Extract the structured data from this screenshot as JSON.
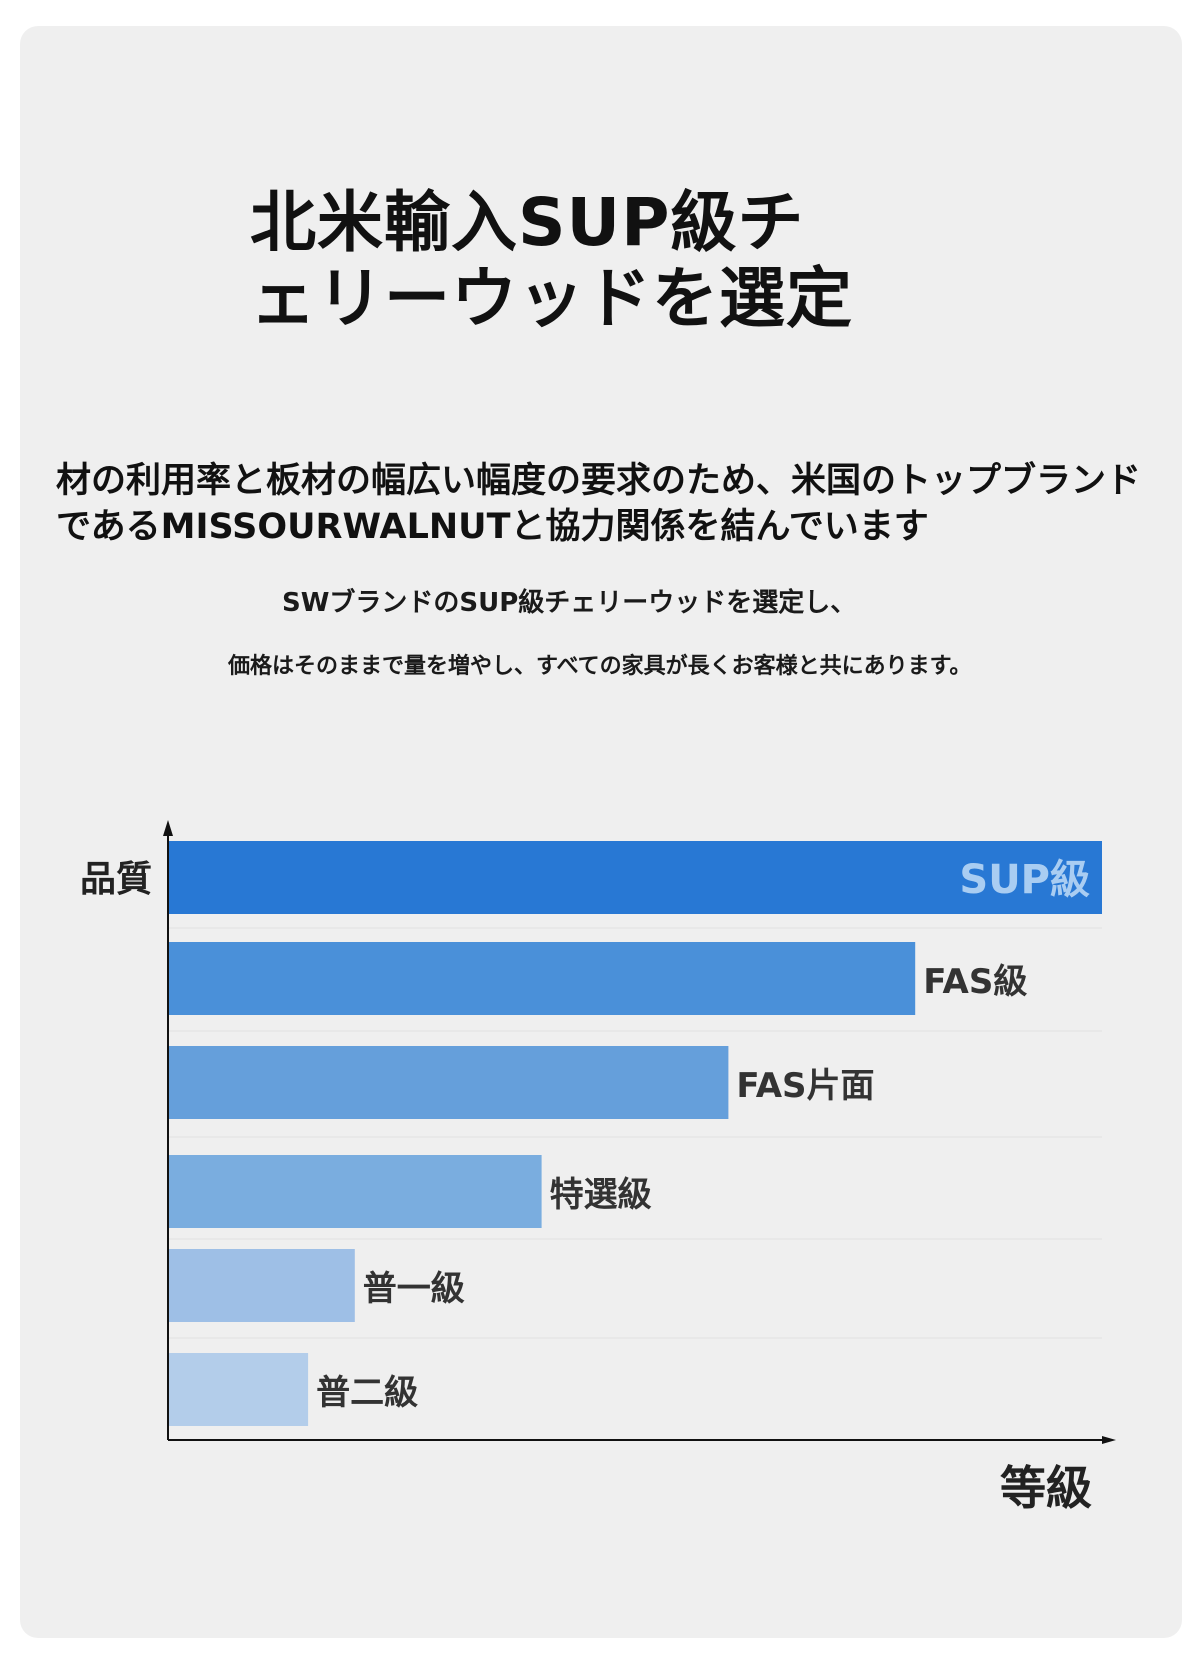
{
  "title_lines": [
    "北米輸入SUP級チ",
    "ェリーウッドを選定"
  ],
  "lead_text": "材の利用率と板材の幅広い幅度の要求のため、米国のトップブランドであるMISSOURWALNUTと協力関係を結んでいます",
  "sub_text_1": "SWブランドのSUP級チェリーウッドを選定し、",
  "sub_text_2": "価格はそのままで量を増やし、すべての家具が長くお客様と共にあります。",
  "chart_data": {
    "type": "bar",
    "orientation": "horizontal",
    "ylabel": "品質",
    "xlabel": "等級",
    "categories": [
      "SUP級",
      "FAS級",
      "FAS片面",
      "特選級",
      "普一級",
      "普二級"
    ],
    "values": [
      100,
      80,
      60,
      40,
      20,
      15
    ],
    "xlim": [
      0,
      100
    ],
    "grid": false,
    "colors": [
      "#2878d4",
      "#4a90d9",
      "#659fdb",
      "#7aaddf",
      "#9ebfe6",
      "#b3cdea"
    ],
    "sup_label_color": "#a9cdf2",
    "label_color": "#333333"
  }
}
